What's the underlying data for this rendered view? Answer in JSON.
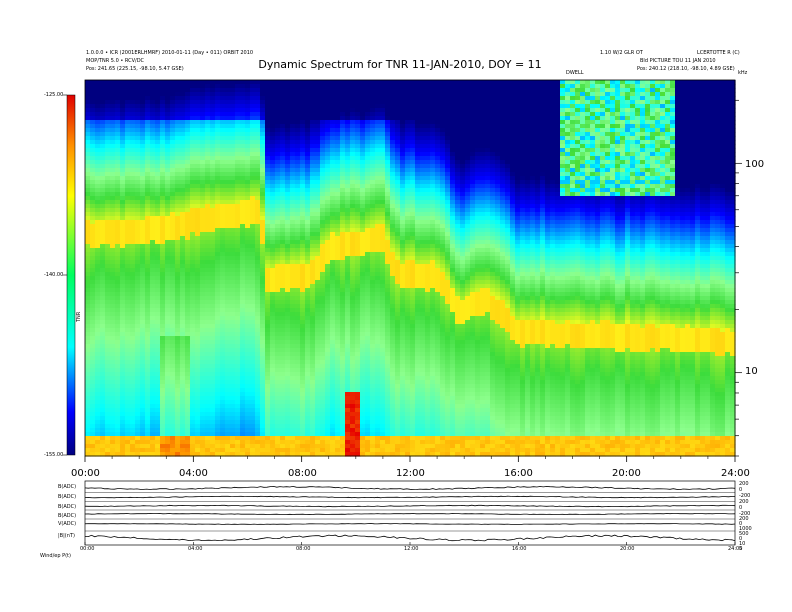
{
  "header": {
    "top_left_line1": "1.0.0.0 • ICR (2001ERLHMRF) 2010-01-11 (Day • 011) ORBIT 2010",
    "top_left_line2": "MOP/TNR 5.0 • RCV/DC",
    "top_left_line3": "Pos:   241.65 (225.15, -98.10, 5.47 GSE)",
    "top_right_line1": "1.10 W/2 GLR OT",
    "top_right_line2": "LCERTOTTE R (C)",
    "top_right_line3": "Bld PICTURE TOU 11 JAN 2010",
    "top_right_line4": "Pos:   240.12 (218.10, -98.10, 4.89 GSE)",
    "marker_label": "DWELL",
    "khz_label": "kHz"
  },
  "chart_data": {
    "type": "heatmap",
    "title": "Dynamic Spectrum for TNR 11-JAN-2010, DOY = 11",
    "x_tick_labels": [
      "00:00",
      "04:00",
      "08:00",
      "12:00",
      "16:00",
      "20:00",
      "24:00"
    ],
    "x_ticks_hours": [
      0,
      4,
      8,
      12,
      16,
      20,
      24
    ],
    "xlim_hours": [
      0,
      24
    ],
    "y_scale": "log",
    "ylim_khz": [
      4,
      250
    ],
    "y_tick_labels": [
      "100",
      "10"
    ],
    "y_ticks_khz": [
      100,
      10
    ],
    "colorbar_labels": [
      "-125.00",
      "-140.00",
      "-155.00"
    ],
    "colorbar_ticks": [
      -125,
      -140,
      -155
    ],
    "colorbar_range": [
      -155,
      -125
    ],
    "colorbar_unit": "TNR",
    "colors": {
      "deep_blue": "#0000cc",
      "blue": "#1450ff",
      "cyan": "#14e6ff",
      "light_green": "#8cff8c",
      "green": "#3cdc3c",
      "yellow": "#ffff1e",
      "orange": "#ffa000",
      "red": "#e60000"
    }
  },
  "panels": {
    "labels": [
      "B(ADC)",
      "B(ADC)",
      "B(ADC)",
      "B(ADC)",
      "V(ADC)",
      "|B|(nT)"
    ],
    "right_labels": [
      "200",
      "0",
      "-200",
      "200",
      "0",
      "-200",
      "200",
      "0",
      "1000",
      "500",
      "0",
      "10",
      "5"
    ],
    "x_tick_labels": [
      "00:00",
      "04:00",
      "08:00",
      "12:00",
      "16:00",
      "20:00",
      "24:00"
    ],
    "footer": "Wind/ep    P(t)"
  }
}
